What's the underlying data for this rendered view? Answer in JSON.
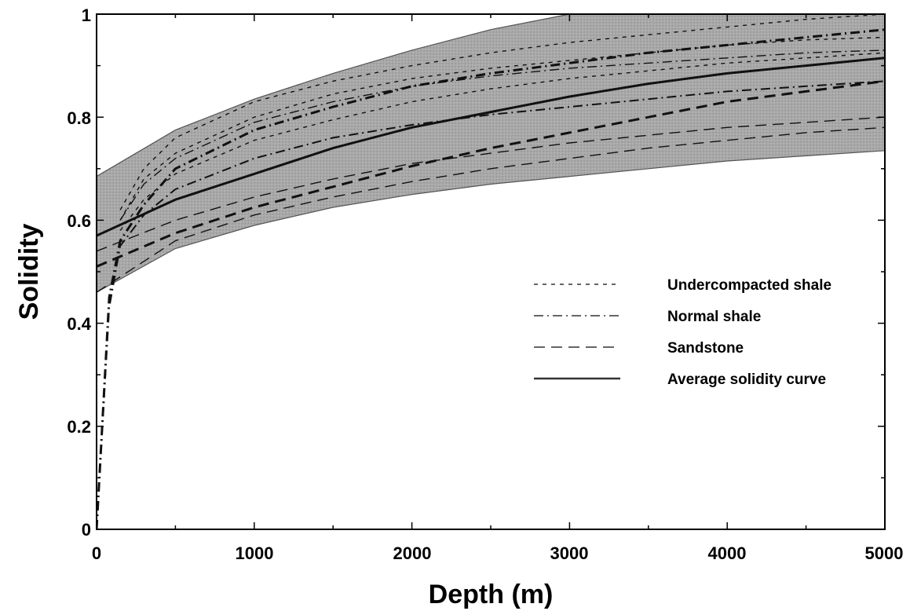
{
  "chart_data": {
    "type": "line",
    "xlabel": "Depth (m)",
    "ylabel": "Solidity",
    "xlim": [
      0,
      5000
    ],
    "ylim": [
      0,
      1
    ],
    "x_ticks": [
      "0",
      "1000",
      "2000",
      "3000",
      "4000",
      "5000"
    ],
    "y_ticks": [
      "0",
      "0.2",
      "0.4",
      "0.6",
      "0.8",
      "1"
    ],
    "grid": false,
    "legend_position": "center-right",
    "legend": [
      {
        "label": "Undercompacted shale",
        "style": "dotted"
      },
      {
        "label": "Normal shale",
        "style": "dashdot"
      },
      {
        "label": "Sandstone",
        "style": "dashed"
      },
      {
        "label": "Average solidity curve",
        "style": "solid"
      }
    ],
    "band": {
      "x": [
        0,
        500,
        1000,
        1500,
        2000,
        2500,
        3000,
        3500,
        4000,
        4500,
        5000
      ],
      "upper": [
        0.685,
        0.775,
        0.835,
        0.885,
        0.93,
        0.97,
        1.0,
        1.0,
        1.0,
        1.0,
        1.0
      ],
      "lower": [
        0.46,
        0.545,
        0.59,
        0.625,
        0.65,
        0.67,
        0.685,
        0.7,
        0.715,
        0.725,
        0.735
      ],
      "color": "#a6a6a6"
    },
    "series": [
      {
        "style": "solid",
        "width": 3,
        "x": [
          0,
          500,
          1000,
          1500,
          2000,
          2500,
          3000,
          3500,
          4000,
          4500,
          5000
        ],
        "y": [
          0.57,
          0.64,
          0.69,
          0.74,
          0.78,
          0.81,
          0.84,
          0.865,
          0.885,
          0.9,
          0.915
        ]
      },
      {
        "style": "dashed",
        "width": 3,
        "x": [
          0,
          500,
          1000,
          1500,
          2000,
          2500,
          3000,
          3500,
          4000,
          4500,
          5000
        ],
        "y": [
          0.51,
          0.575,
          0.625,
          0.665,
          0.705,
          0.74,
          0.77,
          0.8,
          0.83,
          0.85,
          0.87
        ]
      },
      {
        "style": "dashdot",
        "width": 3,
        "x": [
          0,
          80,
          150,
          300,
          500,
          1000,
          1500,
          2000,
          2500,
          3000,
          3500,
          4000,
          4500,
          5000
        ],
        "y": [
          0,
          0.45,
          0.56,
          0.63,
          0.7,
          0.775,
          0.82,
          0.86,
          0.885,
          0.905,
          0.925,
          0.94,
          0.955,
          0.97
        ]
      },
      {
        "style": "dashdot",
        "width": 2,
        "x": [
          0,
          80,
          150,
          300,
          500,
          1000,
          1500,
          2000,
          2500,
          3000,
          3500,
          4000,
          4500,
          5000
        ],
        "y": [
          0,
          0.43,
          0.55,
          0.61,
          0.66,
          0.72,
          0.76,
          0.785,
          0.805,
          0.82,
          0.835,
          0.85,
          0.86,
          0.87
        ]
      },
      {
        "style": "dashdot",
        "width": 1.4,
        "x": [
          150,
          300,
          500,
          1000,
          1500,
          2000,
          2500,
          3000,
          3500,
          4000,
          4500,
          5000
        ],
        "y": [
          0.6,
          0.67,
          0.72,
          0.79,
          0.83,
          0.86,
          0.88,
          0.895,
          0.905,
          0.915,
          0.925,
          0.93
        ]
      },
      {
        "style": "dotted",
        "width": 1.4,
        "x": [
          150,
          300,
          500,
          1000,
          1500,
          2000,
          2500,
          3000,
          3500,
          4000,
          4500,
          5000
        ],
        "y": [
          0.62,
          0.7,
          0.76,
          0.83,
          0.87,
          0.9,
          0.925,
          0.945,
          0.96,
          0.975,
          0.99,
          1.0
        ]
      },
      {
        "style": "dotted",
        "width": 1.4,
        "x": [
          150,
          300,
          500,
          1000,
          1500,
          2000,
          2500,
          3000,
          3500,
          4000,
          4500,
          5000
        ],
        "y": [
          0.6,
          0.68,
          0.73,
          0.8,
          0.845,
          0.875,
          0.895,
          0.91,
          0.925,
          0.94,
          0.95,
          0.955
        ]
      },
      {
        "style": "dotted",
        "width": 1.4,
        "x": [
          150,
          300,
          500,
          1000,
          1500,
          2000,
          2500,
          3000,
          3500,
          4000,
          4500,
          5000
        ],
        "y": [
          0.58,
          0.64,
          0.69,
          0.755,
          0.795,
          0.83,
          0.855,
          0.875,
          0.89,
          0.905,
          0.915,
          0.925
        ]
      },
      {
        "style": "dashed",
        "width": 1.4,
        "x": [
          0,
          500,
          1000,
          1500,
          2000,
          2500,
          3000,
          3500,
          4000,
          4500,
          5000
        ],
        "y": [
          0.54,
          0.6,
          0.645,
          0.68,
          0.71,
          0.73,
          0.75,
          0.765,
          0.78,
          0.79,
          0.8
        ]
      },
      {
        "style": "dashed",
        "width": 1.4,
        "x": [
          0,
          500,
          1000,
          1500,
          2000,
          2500,
          3000,
          3500,
          4000,
          4500,
          5000
        ],
        "y": [
          0.46,
          0.56,
          0.61,
          0.645,
          0.675,
          0.7,
          0.72,
          0.74,
          0.755,
          0.77,
          0.78
        ]
      }
    ]
  }
}
